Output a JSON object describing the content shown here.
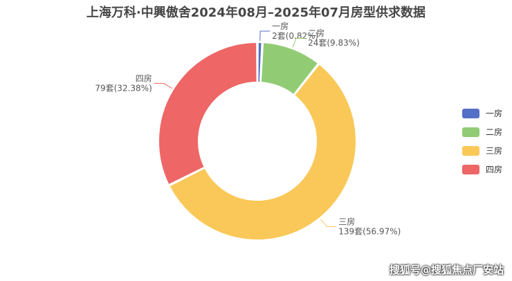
{
  "title": "上海万科·中興傲舍2024年08月–2025年07月房型供求数据",
  "watermark": "搜狐号@搜狐焦点厂安站",
  "chart_data": {
    "type": "pie",
    "variant": "donut",
    "title": "上海万科·中興傲舍2024年08月–2025年07月房型供求数据",
    "legend_position": "right",
    "unit": "套",
    "slices": [
      {
        "name": "一房",
        "value": 2,
        "percent": "0.82%",
        "color": "#5470c6"
      },
      {
        "name": "二房",
        "value": 24,
        "percent": "9.83%",
        "color": "#91cc75"
      },
      {
        "name": "三房",
        "value": 139,
        "percent": "56.97%",
        "color": "#fac858"
      },
      {
        "name": "四房",
        "value": 79,
        "percent": "32.38%",
        "color": "#ee6666"
      }
    ]
  }
}
